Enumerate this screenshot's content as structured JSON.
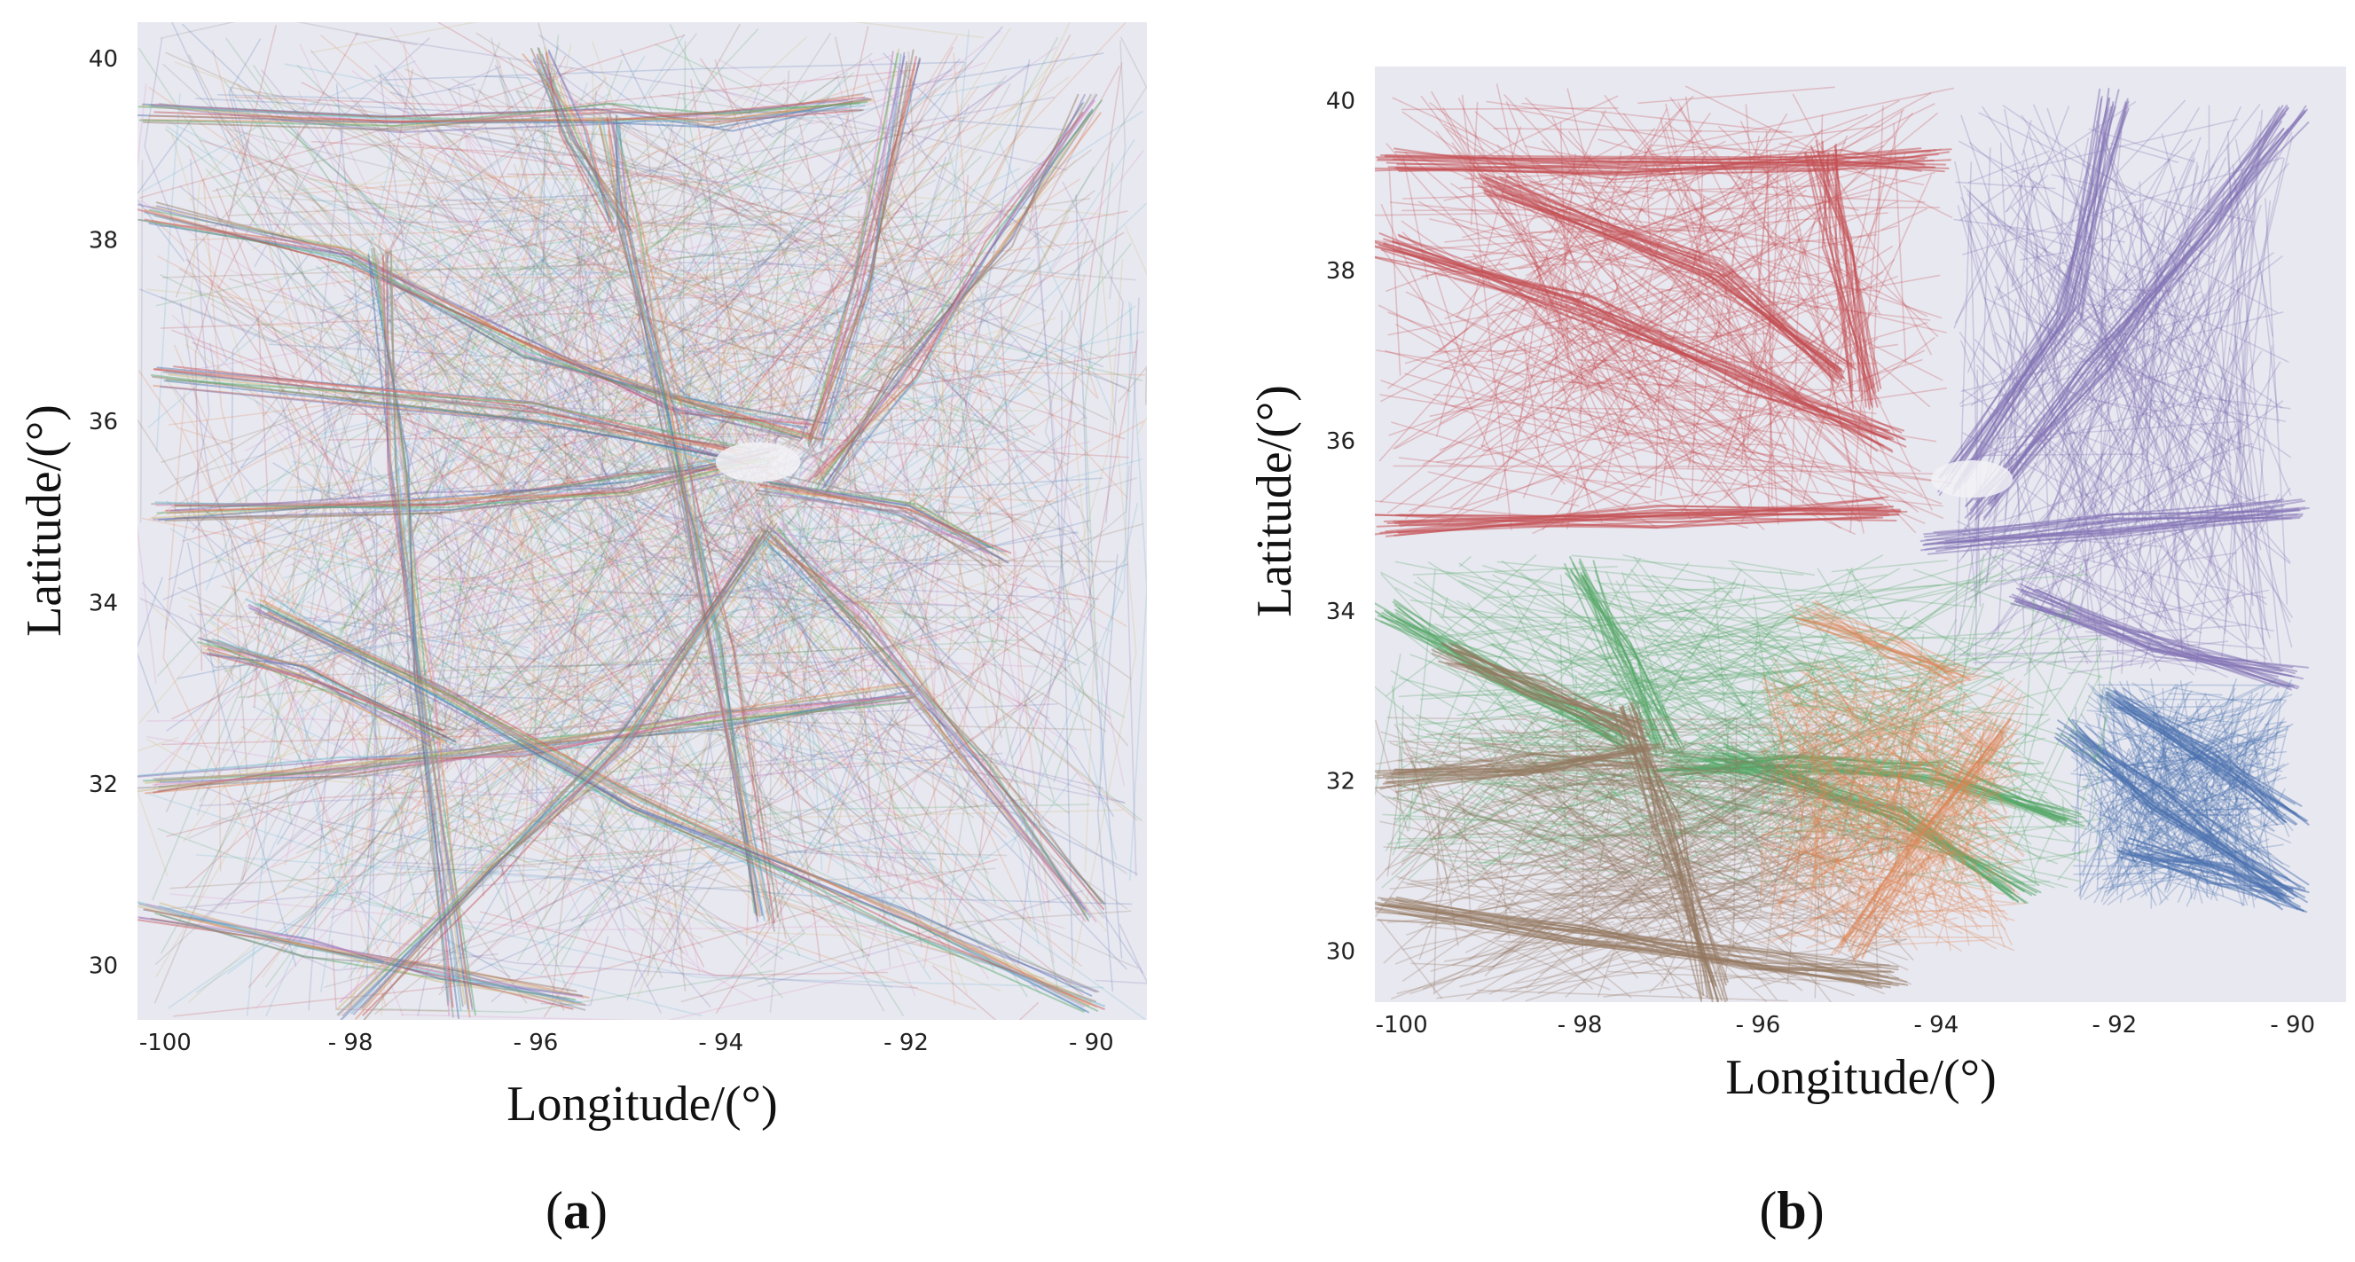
{
  "figure": {
    "background": "#ffffff",
    "plot_background": "#e8e8f0"
  },
  "chart_data": [
    {
      "type": "line",
      "panel_label": "a",
      "title": "",
      "xlabel": "Longitude/(°)",
      "ylabel": "Latitude/(°)",
      "xlim": [
        -100.3,
        -89.4
      ],
      "ylim": [
        29.4,
        40.4
      ],
      "xticks": [
        -100,
        -98,
        -96,
        -94,
        -92,
        -90
      ],
      "yticks": [
        30,
        32,
        34,
        36,
        38,
        40
      ],
      "x_tick_labels": [
        "-100",
        "- 98",
        "- 96",
        "- 94",
        "- 92",
        "- 90"
      ],
      "y_tick_labels": [
        "30",
        "32",
        "34",
        "36",
        "38",
        "40"
      ],
      "grid": false,
      "coloring": "per-trajectory",
      "palette": [
        "#4c72b0",
        "#dd8452",
        "#55a868",
        "#c44e52",
        "#8172b3",
        "#937860",
        "#da8bc3",
        "#8c8c8c",
        "#ccb974",
        "#64b5cd"
      ],
      "line_opacity": 0.45,
      "series": [
        {
          "points": [
            [
              -100.2,
              39.4
            ],
            [
              -97.5,
              39.3
            ],
            [
              -95.2,
              39.4
            ],
            [
              -94.0,
              39.3
            ],
            [
              -92.5,
              39.5
            ]
          ]
        },
        {
          "points": [
            [
              -100.2,
              38.3
            ],
            [
              -98.0,
              37.8
            ],
            [
              -96.0,
              36.8
            ],
            [
              -94.5,
              36.2
            ],
            [
              -93.0,
              35.9
            ]
          ]
        },
        {
          "points": [
            [
              -100.0,
              35.0
            ],
            [
              -97.0,
              35.1
            ],
            [
              -95.0,
              35.3
            ],
            [
              -93.5,
              35.6
            ]
          ]
        },
        {
          "points": [
            [
              -93.0,
              35.3
            ],
            [
              -92.0,
              36.5
            ],
            [
              -91.0,
              38.0
            ],
            [
              -90.0,
              39.5
            ]
          ]
        },
        {
          "points": [
            [
              -93.5,
              34.8
            ],
            [
              -92.5,
              33.8
            ],
            [
              -91.2,
              32.2
            ],
            [
              -90.0,
              30.6
            ]
          ]
        },
        {
          "points": [
            [
              -100.2,
              32.0
            ],
            [
              -98.0,
              32.2
            ],
            [
              -96.0,
              32.4
            ],
            [
              -94.0,
              32.7
            ],
            [
              -92.0,
              33.0
            ]
          ]
        },
        {
          "points": [
            [
              -100.2,
              30.6
            ],
            [
              -98.5,
              30.2
            ],
            [
              -97.0,
              29.9
            ],
            [
              -95.5,
              29.6
            ]
          ]
        },
        {
          "points": [
            [
              -97.7,
              37.8
            ],
            [
              -97.5,
              35.5
            ],
            [
              -97.2,
              33.0
            ],
            [
              -96.8,
              29.5
            ]
          ]
        },
        {
          "points": [
            [
              -95.2,
              39.3
            ],
            [
              -95.0,
              38.2
            ],
            [
              -94.5,
              36.0
            ],
            [
              -94.0,
              33.5
            ],
            [
              -93.5,
              30.5
            ]
          ]
        },
        {
          "points": [
            [
              -99.0,
              34.0
            ],
            [
              -97.0,
              33.0
            ],
            [
              -95.0,
              31.8
            ],
            [
              -92.0,
              30.5
            ],
            [
              -90.0,
              29.6
            ]
          ]
        },
        {
          "points": [
            [
              -100.0,
              36.5
            ],
            [
              -96.0,
              36.1
            ],
            [
              -93.8,
              35.6
            ]
          ]
        },
        {
          "points": [
            [
              -99.5,
              33.5
            ],
            [
              -98.5,
              33.2
            ],
            [
              -97.0,
              32.5
            ]
          ]
        },
        {
          "points": [
            [
              -96.0,
              40.0
            ],
            [
              -95.6,
              39.2
            ],
            [
              -95.1,
              38.2
            ]
          ]
        },
        {
          "points": [
            [
              -92.0,
              40.0
            ],
            [
              -92.5,
              37.5
            ],
            [
              -93.0,
              35.8
            ]
          ]
        },
        {
          "points": [
            [
              -91.0,
              34.5
            ],
            [
              -92.0,
              35.0
            ],
            [
              -93.5,
              35.3
            ]
          ]
        },
        {
          "points": [
            [
              -98.0,
              29.5
            ],
            [
              -96.5,
              31.0
            ],
            [
              -95.0,
              32.5
            ],
            [
              -93.5,
              34.8
            ]
          ]
        }
      ]
    },
    {
      "type": "line",
      "panel_label": "b",
      "title": "",
      "xlabel": "Longitude/(°)",
      "ylabel": "Latitude/(°)",
      "xlim": [
        -100.3,
        -89.4
      ],
      "ylim": [
        29.4,
        40.4
      ],
      "xticks": [
        -100,
        -98,
        -96,
        -94,
        -92,
        -90
      ],
      "yticks": [
        30,
        32,
        34,
        36,
        38,
        40
      ],
      "x_tick_labels": [
        "-100",
        "- 98",
        "- 96",
        "- 94",
        "- 92",
        "- 90"
      ],
      "y_tick_labels": [
        "30",
        "32",
        "34",
        "36",
        "38",
        "40"
      ],
      "grid": false,
      "coloring": "per-cluster",
      "line_opacity": 0.5,
      "clusters": [
        {
          "color": "#c44e52",
          "region": {
            "lon": [
              -100.3,
              -93.8
            ],
            "lat": [
              34.9,
              40.2
            ]
          },
          "series": [
            {
              "points": [
                [
                  -100.2,
                  39.3
                ],
                [
                  -97.5,
                  39.2
                ],
                [
                  -95.2,
                  39.3
                ],
                [
                  -94.0,
                  39.3
                ]
              ]
            },
            {
              "points": [
                [
                  -100.2,
                  38.3
                ],
                [
                  -98.0,
                  37.6
                ],
                [
                  -96.0,
                  36.7
                ],
                [
                  -94.5,
                  36.0
                ]
              ]
            },
            {
              "points": [
                [
                  -100.2,
                  35.0
                ],
                [
                  -97.0,
                  35.1
                ],
                [
                  -94.5,
                  35.2
                ]
              ]
            },
            {
              "points": [
                [
                  -99.0,
                  39.0
                ],
                [
                  -96.5,
                  38.0
                ],
                [
                  -95.0,
                  36.8
                ]
              ]
            },
            {
              "points": [
                [
                  -95.3,
                  39.4
                ],
                [
                  -95.1,
                  38.3
                ],
                [
                  -94.8,
                  36.5
                ]
              ]
            }
          ]
        },
        {
          "color": "#8172b3",
          "region": {
            "lon": [
              -93.8,
              -90.0
            ],
            "lat": [
              33.2,
              40.0
            ]
          },
          "series": [
            {
              "points": [
                [
                  -93.5,
                  35.2
                ],
                [
                  -92.2,
                  36.8
                ],
                [
                  -91.0,
                  38.5
                ],
                [
                  -90.0,
                  39.8
                ]
              ]
            },
            {
              "points": [
                [
                  -94.0,
                  34.8
                ],
                [
                  -92.0,
                  35.0
                ],
                [
                  -90.0,
                  35.2
                ]
              ]
            },
            {
              "points": [
                [
                  -93.8,
                  35.5
                ],
                [
                  -92.5,
                  37.5
                ],
                [
                  -92.0,
                  40.0
                ]
              ]
            },
            {
              "points": [
                [
                  -93.0,
                  34.2
                ],
                [
                  -91.5,
                  33.6
                ],
                [
                  -90.0,
                  33.2
                ]
              ]
            }
          ]
        },
        {
          "color": "#4c72b0",
          "region": {
            "lon": [
              -92.5,
              -90.0
            ],
            "lat": [
              30.5,
              33.2
            ]
          },
          "series": [
            {
              "points": [
                [
                  -92.5,
                  32.6
                ],
                [
                  -91.5,
                  31.8
                ],
                [
                  -90.0,
                  30.7
                ]
              ]
            },
            {
              "points": [
                [
                  -92.0,
                  33.0
                ],
                [
                  -91.0,
                  32.3
                ],
                [
                  -90.0,
                  31.6
                ]
              ]
            },
            {
              "points": [
                [
                  -91.8,
                  31.2
                ],
                [
                  -90.8,
                  30.9
                ],
                [
                  -90.0,
                  30.6
                ]
              ]
            }
          ]
        },
        {
          "color": "#55a868",
          "region": {
            "lon": [
              -100.3,
              -92.0
            ],
            "lat": [
              30.7,
              34.7
            ]
          },
          "series": [
            {
              "points": [
                [
                  -97.0,
                  32.2
                ],
                [
                  -95.5,
                  32.2
                ],
                [
                  -94.0,
                  32.1
                ],
                [
                  -92.5,
                  31.6
                ]
              ]
            },
            {
              "points": [
                [
                  -100.2,
                  34.0
                ],
                [
                  -99.0,
                  33.3
                ],
                [
                  -97.5,
                  32.5
                ]
              ]
            },
            {
              "points": [
                [
                  -96.5,
                  32.3
                ],
                [
                  -94.5,
                  31.6
                ],
                [
                  -93.0,
                  30.7
                ]
              ]
            },
            {
              "points": [
                [
                  -98.0,
                  34.5
                ],
                [
                  -97.5,
                  33.5
                ],
                [
                  -97.0,
                  32.4
                ]
              ]
            }
          ]
        },
        {
          "color": "#937860",
          "region": {
            "lon": [
              -100.3,
              -94.2
            ],
            "lat": [
              29.4,
              32.8
            ]
          },
          "series": [
            {
              "points": [
                [
                  -100.2,
                  30.5
                ],
                [
                  -98.0,
                  30.2
                ],
                [
                  -96.0,
                  29.9
                ],
                [
                  -94.5,
                  29.7
                ]
              ]
            },
            {
              "points": [
                [
                  -97.5,
                  32.8
                ],
                [
                  -97.0,
                  31.5
                ],
                [
                  -96.5,
                  29.5
                ]
              ]
            },
            {
              "points": [
                [
                  -100.2,
                  32.0
                ],
                [
                  -98.5,
                  32.2
                ],
                [
                  -97.2,
                  32.3
                ]
              ]
            },
            {
              "points": [
                [
                  -99.5,
                  33.5
                ],
                [
                  -98.5,
                  33.1
                ],
                [
                  -97.4,
                  32.6
                ]
              ]
            }
          ]
        },
        {
          "color": "#dd8452",
          "region": {
            "lon": [
              -96.0,
              -93.0
            ],
            "lat": [
              30.0,
              33.5
            ]
          },
          "series": [
            {
              "points": [
                [
                  -95.0,
                  30.0
                ],
                [
                  -94.2,
                  31.2
                ],
                [
                  -93.2,
                  32.6
                ]
              ]
            },
            {
              "points": [
                [
                  -95.5,
                  34.0
                ],
                [
                  -94.5,
                  33.6
                ],
                [
                  -93.8,
                  33.2
                ]
              ]
            }
          ]
        }
      ]
    }
  ]
}
